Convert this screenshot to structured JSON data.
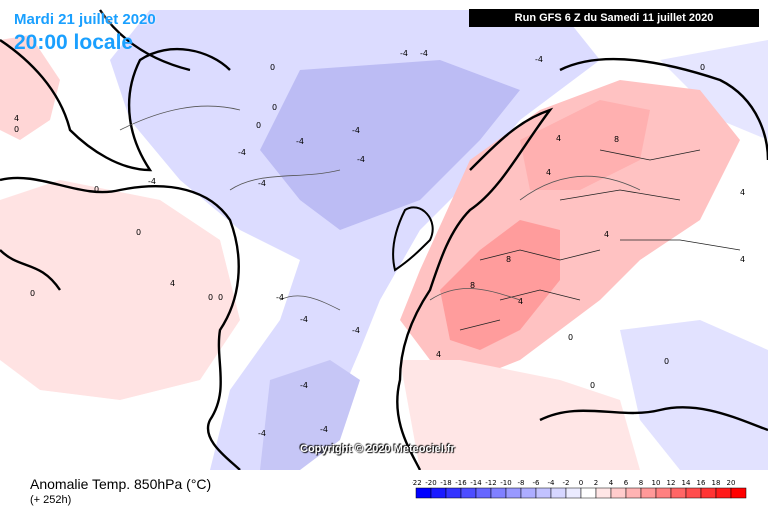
{
  "header": {
    "date": "Mardi 21 juillet 2020",
    "time": "20:00 locale",
    "run": "Run GFS 6 Z du Samedi 11 juillet 2020"
  },
  "map": {
    "copyright": "Copyright © 2020 Meteociel.fr",
    "contour_labels": [
      "-4",
      "0",
      "4",
      "8"
    ]
  },
  "legend": {
    "title": "Anomalie Temp. 850hPa (°C)",
    "subtitle": "(+ 252h)",
    "ticks": [
      "-22",
      "-20",
      "-18",
      "-16",
      "-14",
      "-12",
      "-10",
      "-8",
      "-6",
      "-4",
      "-2",
      "0",
      "2",
      "4",
      "6",
      "8",
      "10",
      "12",
      "14",
      "16",
      "18",
      "20"
    ],
    "colors": [
      "#0000ff",
      "#1a1aff",
      "#3333ff",
      "#4d4dff",
      "#6666ff",
      "#8080ff",
      "#9999ff",
      "#adadff",
      "#c2c2ff",
      "#d6d6ff",
      "#ebebff",
      "#ffffff",
      "#ffe6e6",
      "#ffcccc",
      "#ffb3b3",
      "#ff9999",
      "#ff8080",
      "#ff6666",
      "#ff4d4d",
      "#ff3333",
      "#ff1a1a",
      "#ff0000"
    ]
  }
}
